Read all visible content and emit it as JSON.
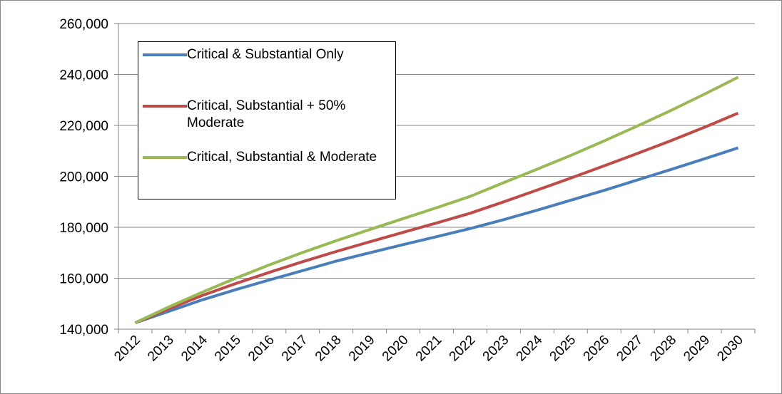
{
  "chart_data": {
    "type": "line",
    "categories": [
      "2012",
      "2013",
      "2014",
      "2015",
      "2016",
      "2017",
      "2018",
      "2019",
      "2020",
      "2021",
      "2022",
      "2023",
      "2024",
      "2025",
      "2026",
      "2027",
      "2028",
      "2029",
      "2030"
    ],
    "series": [
      {
        "name": "Critical & Substantial Only",
        "color": "#4a7ebb",
        "values": [
          142500,
          147000,
          151500,
          155500,
          159300,
          163000,
          166700,
          170000,
          173200,
          176300,
          179500,
          183000,
          186700,
          190600,
          194500,
          198600,
          202700,
          206900,
          211200
        ]
      },
      {
        "name": "Critical, Substantial + 50% Moderate",
        "color": "#be4b48",
        "values": [
          142500,
          148000,
          153200,
          157900,
          162300,
          166500,
          170500,
          174300,
          178000,
          181700,
          185500,
          190000,
          194600,
          199300,
          204100,
          209000,
          214000,
          219300,
          224800
        ]
      },
      {
        "name": "Critical, Substantial & Moderate",
        "color": "#98b954",
        "values": [
          142500,
          148700,
          154500,
          160000,
          165200,
          170100,
          174700,
          179100,
          183400,
          187700,
          192100,
          197500,
          202800,
          208200,
          213900,
          219800,
          225900,
          232300,
          238900
        ]
      }
    ],
    "ylim": [
      140000,
      260000
    ],
    "yticks": [
      {
        "value": 140000,
        "label": "140,000"
      },
      {
        "value": 160000,
        "label": "160,000"
      },
      {
        "value": 180000,
        "label": "180,000"
      },
      {
        "value": 200000,
        "label": "200,000"
      },
      {
        "value": 220000,
        "label": "220,000"
      },
      {
        "value": 240000,
        "label": "240,000"
      },
      {
        "value": 260000,
        "label": "260,000"
      }
    ],
    "grid": true,
    "legend": "upper-left"
  }
}
